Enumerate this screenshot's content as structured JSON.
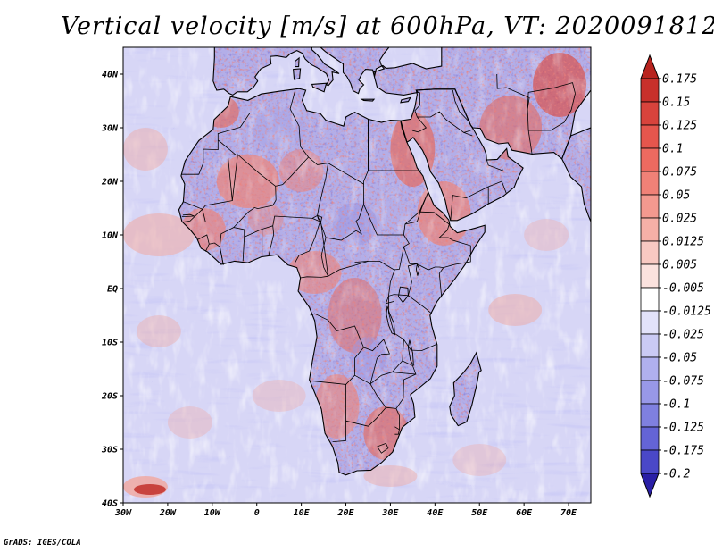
{
  "title": "Vertical velocity [m/s] at 600hPa, VT: 2020091812",
  "credit": "GrADS: IGES/COLA",
  "map": {
    "projection": "lat-lon",
    "lon_range": [
      -30,
      75
    ],
    "lat_range": [
      -40,
      45
    ],
    "lon_ticks": [
      {
        "value": -30,
        "label": "30W"
      },
      {
        "value": -20,
        "label": "20W"
      },
      {
        "value": -10,
        "label": "10W"
      },
      {
        "value": 0,
        "label": "0"
      },
      {
        "value": 10,
        "label": "10E"
      },
      {
        "value": 20,
        "label": "20E"
      },
      {
        "value": 30,
        "label": "30E"
      },
      {
        "value": 40,
        "label": "40E"
      },
      {
        "value": 50,
        "label": "50E"
      },
      {
        "value": 60,
        "label": "60E"
      },
      {
        "value": 70,
        "label": "70E"
      }
    ],
    "lat_ticks": [
      {
        "value": 40,
        "label": "40N"
      },
      {
        "value": 30,
        "label": "30N"
      },
      {
        "value": 20,
        "label": "20N"
      },
      {
        "value": 10,
        "label": "10N"
      },
      {
        "value": 0,
        "label": "EQ"
      },
      {
        "value": -10,
        "label": "10S"
      },
      {
        "value": -20,
        "label": "20S"
      },
      {
        "value": -30,
        "label": "30S"
      },
      {
        "value": -40,
        "label": "40S"
      }
    ],
    "field": "vertical velocity at 600hPa",
    "units": "m/s",
    "colors": {
      "ocean_positive": "#f4b6b0",
      "ocean_negative": "#b9b7ee",
      "land_positive": "#e8837e",
      "land_negative": "#8c8ae0",
      "coastline": "#000000"
    }
  },
  "colorbar": {
    "levels": [
      {
        "label": "0.175",
        "color": "#c8302b"
      },
      {
        "label": "0.15",
        "color": "#d8433c"
      },
      {
        "label": "0.125",
        "color": "#e5564d"
      },
      {
        "label": "0.1",
        "color": "#ed6a60"
      },
      {
        "label": "0.075",
        "color": "#f08177"
      },
      {
        "label": "0.05",
        "color": "#f3998f"
      },
      {
        "label": "0.025",
        "color": "#f5b0a7"
      },
      {
        "label": "0.0125",
        "color": "#f8c9c2"
      },
      {
        "label": "0.005",
        "color": "#fbe2de"
      },
      {
        "label": "-0.005",
        "color": "#ffffff"
      },
      {
        "label": "-0.0125",
        "color": "#e2e2fa"
      },
      {
        "label": "-0.025",
        "color": "#cacaf4"
      },
      {
        "label": "-0.05",
        "color": "#b0b0ee"
      },
      {
        "label": "-0.075",
        "color": "#9898e8"
      },
      {
        "label": "-0.1",
        "color": "#7f80e0"
      },
      {
        "label": "-0.125",
        "color": "#6464d6"
      },
      {
        "label": "-0.175",
        "color": "#4a48c8"
      },
      {
        "label": "-0.2",
        "color": "#3430b4"
      }
    ],
    "top_arrow_color": "#b8231e",
    "bottom_arrow_color": "#2a1fa6"
  }
}
